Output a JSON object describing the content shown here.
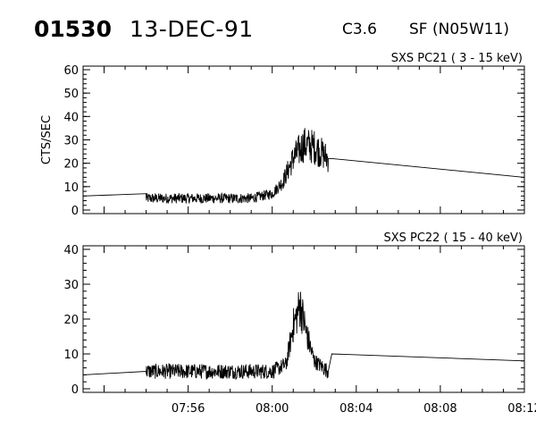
{
  "header": {
    "event_id": "01530",
    "date": "13-DEC-91",
    "goes_class": "C3.6",
    "flare_info": "SF (N05W11)"
  },
  "chart_data": [
    {
      "type": "line",
      "title": "SXS PC21  (  3 - 15 keV)",
      "xlabel": "",
      "ylabel": "CTS/SEC",
      "xlim": [
        "07:51",
        "08:12"
      ],
      "ylim": [
        0,
        60
      ],
      "yticks": [
        "0",
        "10",
        "20",
        "30",
        "40",
        "50",
        "60"
      ],
      "xticks": [
        "07:56",
        "08:00",
        "08:04",
        "08:08",
        "08:12"
      ],
      "xtick_labels_shown": false,
      "series": [
        {
          "x": [
            "07:51:00",
            "07:54:00",
            "07:54:00",
            "07:59:00",
            "08:00:00",
            "08:00:30",
            "08:01:00",
            "08:01:30",
            "08:02:00",
            "08:02:40",
            "08:02:50",
            "08:12:00"
          ],
          "y": [
            6,
            7,
            5,
            5,
            7,
            12,
            22,
            28,
            27,
            22,
            22,
            14
          ]
        }
      ]
    },
    {
      "type": "line",
      "title": "SXS PC22  ( 15 - 40 keV)",
      "xlabel": "",
      "ylabel": "",
      "xlim": [
        "07:51",
        "08:12"
      ],
      "ylim": [
        0,
        40
      ],
      "yticks": [
        "0",
        "10",
        "20",
        "30",
        "40"
      ],
      "xticks": [
        "07:56",
        "08:00",
        "08:04",
        "08:08",
        "08:12"
      ],
      "xtick_labels_shown": true,
      "series": [
        {
          "x": [
            "07:51:00",
            "07:54:00",
            "07:54:00",
            "08:00:00",
            "08:00:40",
            "08:01:00",
            "08:01:20",
            "08:01:40",
            "08:02:00",
            "08:02:40",
            "08:02:50",
            "08:12:00"
          ],
          "y": [
            4,
            5,
            5,
            5,
            7,
            18,
            24,
            15,
            8,
            5,
            10,
            8
          ]
        }
      ]
    }
  ]
}
